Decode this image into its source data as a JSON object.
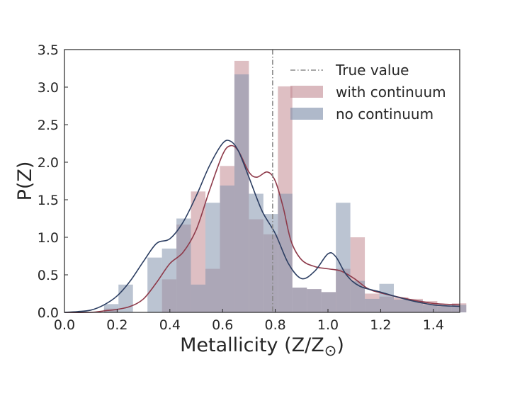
{
  "chart_data": {
    "type": "bar",
    "xlabel": "Metallicity (Z/Z",
    "xlabel_symbol": "⊙",
    "xlabel_close": ")",
    "ylabel": "P(Z)",
    "xlim": [
      0.0,
      1.5
    ],
    "ylim": [
      0.0,
      3.5
    ],
    "xticks": [
      "0.0",
      "0.2",
      "0.4",
      "0.6",
      "0.8",
      "1.0",
      "1.2",
      "1.4"
    ],
    "yticks": [
      "0.0",
      "0.5",
      "1.0",
      "1.5",
      "2.0",
      "2.5",
      "3.0",
      "3.5"
    ],
    "grid": false,
    "legend_position": "top-right",
    "true_value": {
      "label": "True value",
      "x": 0.79,
      "color": "#8a8a8a"
    },
    "bin_edges": [
      0.15,
      0.205,
      0.26,
      0.315,
      0.37,
      0.425,
      0.48,
      0.535,
      0.59,
      0.645,
      0.7,
      0.755,
      0.81,
      0.865,
      0.92,
      0.975,
      1.03,
      1.085,
      1.14,
      1.195,
      1.25,
      1.305,
      1.36,
      1.415,
      1.47,
      1.525
    ],
    "series": [
      {
        "name": "with continuum",
        "color": "#c28a92",
        "kde_color": "#8e3a4a",
        "values": [
          0.05,
          0.0,
          0.0,
          0.0,
          0.44,
          1.17,
          1.61,
          0.58,
          1.95,
          3.35,
          1.24,
          1.04,
          3.01,
          0.33,
          0.31,
          0.27,
          0.58,
          1.0,
          0.25,
          0.21,
          0.2,
          0.18,
          0.15,
          0.09,
          0.12
        ],
        "kde": [
          [
            0.0,
            0.0
          ],
          [
            0.1,
            0.0
          ],
          [
            0.15,
            0.02
          ],
          [
            0.2,
            0.04
          ],
          [
            0.25,
            0.08
          ],
          [
            0.3,
            0.18
          ],
          [
            0.35,
            0.4
          ],
          [
            0.4,
            0.65
          ],
          [
            0.45,
            0.8
          ],
          [
            0.5,
            1.1
          ],
          [
            0.55,
            1.62
          ],
          [
            0.6,
            2.1
          ],
          [
            0.63,
            2.22
          ],
          [
            0.66,
            2.15
          ],
          [
            0.7,
            1.87
          ],
          [
            0.73,
            1.8
          ],
          [
            0.77,
            1.87
          ],
          [
            0.8,
            1.75
          ],
          [
            0.83,
            1.4
          ],
          [
            0.86,
            0.95
          ],
          [
            0.9,
            0.7
          ],
          [
            0.95,
            0.61
          ],
          [
            1.0,
            0.58
          ],
          [
            1.05,
            0.55
          ],
          [
            1.1,
            0.45
          ],
          [
            1.15,
            0.32
          ],
          [
            1.2,
            0.26
          ],
          [
            1.3,
            0.18
          ],
          [
            1.4,
            0.12
          ],
          [
            1.5,
            0.1
          ]
        ]
      },
      {
        "name": "no continuum",
        "color": "#8494ad",
        "kde_color": "#2c3e62",
        "values": [
          0.11,
          0.37,
          0.0,
          0.73,
          0.85,
          1.25,
          0.37,
          1.46,
          1.69,
          3.17,
          1.58,
          1.31,
          1.58,
          0.33,
          0.31,
          0.27,
          1.46,
          0.42,
          0.18,
          0.38,
          0.17,
          0.16,
          0.1,
          0.08,
          0.1
        ],
        "kde": [
          [
            0.0,
            0.0
          ],
          [
            0.05,
            0.01
          ],
          [
            0.1,
            0.03
          ],
          [
            0.15,
            0.1
          ],
          [
            0.2,
            0.22
          ],
          [
            0.25,
            0.42
          ],
          [
            0.3,
            0.68
          ],
          [
            0.35,
            0.92
          ],
          [
            0.4,
            0.98
          ],
          [
            0.45,
            1.2
          ],
          [
            0.5,
            1.55
          ],
          [
            0.55,
            1.95
          ],
          [
            0.6,
            2.25
          ],
          [
            0.63,
            2.28
          ],
          [
            0.66,
            2.15
          ],
          [
            0.7,
            1.8
          ],
          [
            0.75,
            1.35
          ],
          [
            0.8,
            1.05
          ],
          [
            0.85,
            0.65
          ],
          [
            0.9,
            0.45
          ],
          [
            0.95,
            0.55
          ],
          [
            1.0,
            0.78
          ],
          [
            1.03,
            0.74
          ],
          [
            1.07,
            0.5
          ],
          [
            1.12,
            0.35
          ],
          [
            1.2,
            0.27
          ],
          [
            1.3,
            0.17
          ],
          [
            1.4,
            0.1
          ],
          [
            1.5,
            0.08
          ]
        ]
      }
    ]
  }
}
